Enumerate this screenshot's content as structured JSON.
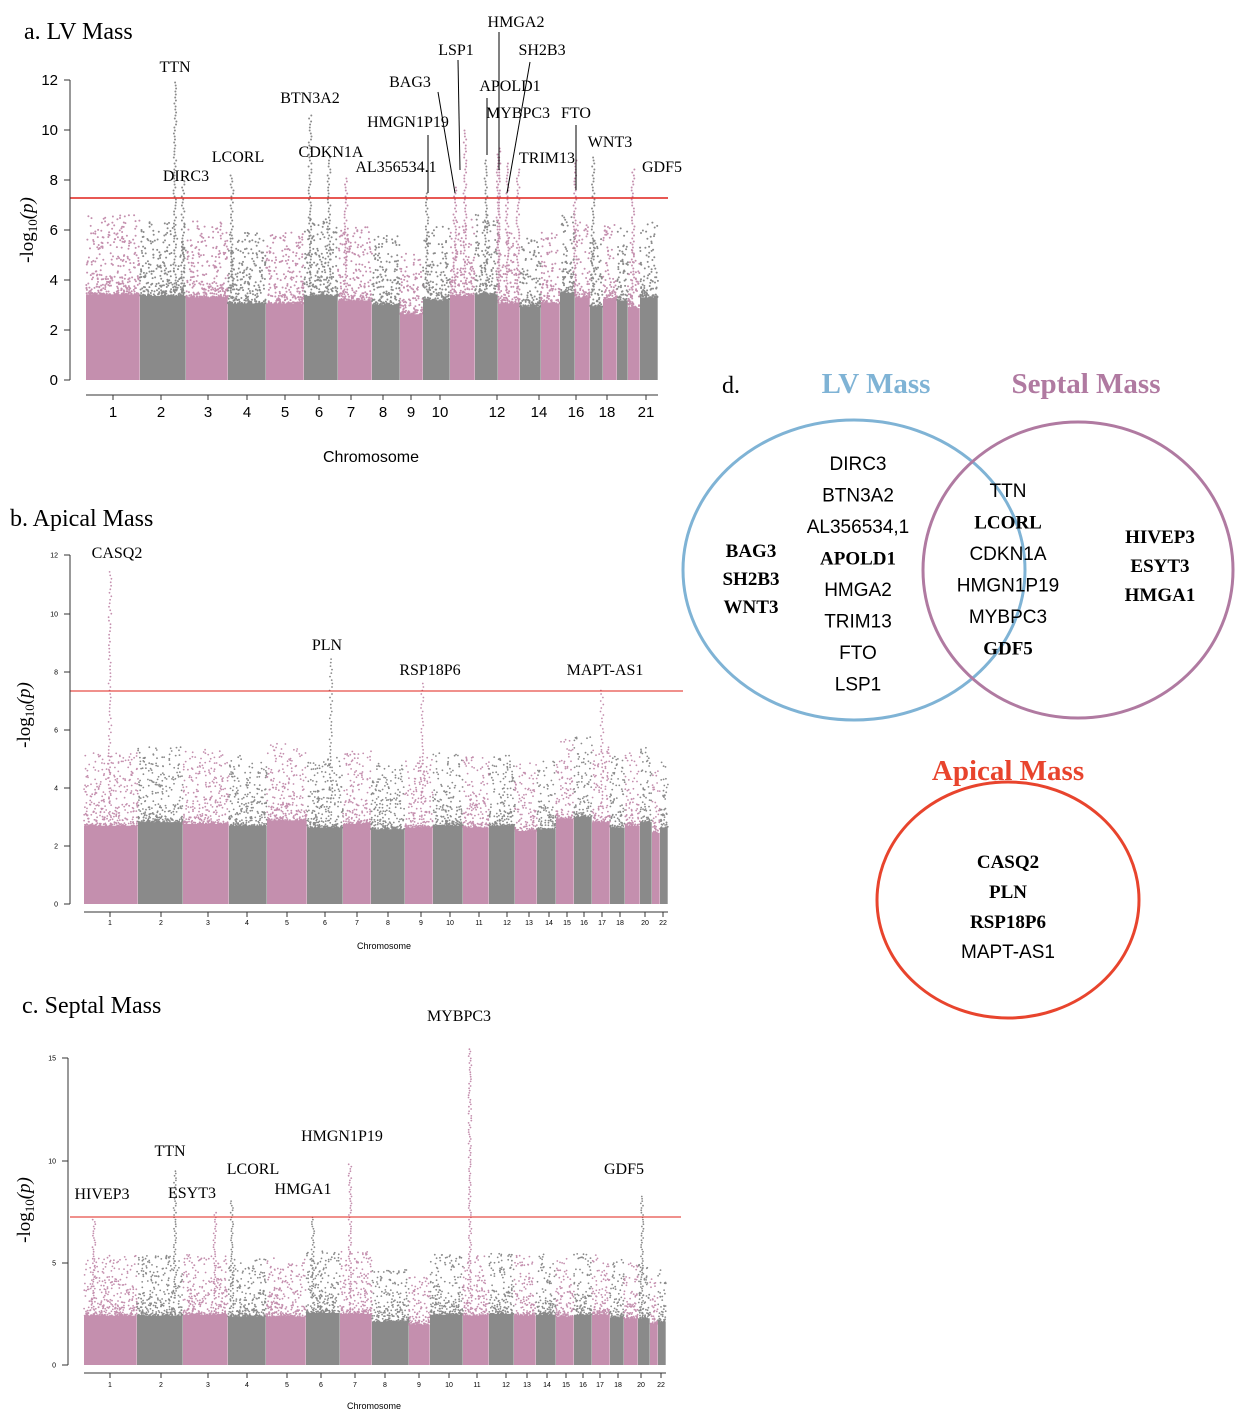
{
  "colors": {
    "pink": "#c48fae",
    "gray": "#8a8a8a",
    "sigline": "#e0201a",
    "lv": "#7fb3d5",
    "septal": "#b07aa1",
    "apical": "#e8442d"
  },
  "panels": [
    {
      "id": "a",
      "title": "a. LV Mass",
      "ylabel_pre": "-log",
      "ylabel_sub": "10",
      "ylabel_post": "(p)",
      "xlabel": "Chromosome",
      "ylim": [
        0,
        12
      ],
      "yticks": [
        "0",
        "2",
        "4",
        "6",
        "8",
        "10",
        "12"
      ],
      "xtick_labels": [
        "1",
        "2",
        "3",
        "4",
        "5",
        "6",
        "7",
        "8",
        "9",
        "10",
        "12",
        "14",
        "16",
        "18",
        "21"
      ],
      "sig": 7.3
    },
    {
      "id": "b",
      "title": "b. Apical Mass",
      "ylabel_pre": "-log",
      "ylabel_sub": "10",
      "ylabel_post": "(p)",
      "xlabel": "Chromosome",
      "ylim": [
        0,
        12
      ],
      "yticks": [
        "0",
        "2",
        "4",
        "6",
        "8",
        "10",
        "12"
      ],
      "xtick_labels": [
        "1",
        "2",
        "3",
        "4",
        "5",
        "6",
        "7",
        "8",
        "9",
        "10",
        "11",
        "12",
        "13",
        "14",
        "15",
        "16",
        "17",
        "18",
        "20",
        "22"
      ],
      "sig": 7.3
    },
    {
      "id": "c",
      "title": "c. Septal Mass",
      "ylabel_pre": "-log",
      "ylabel_sub": "10",
      "ylabel_post": "(p)",
      "xlabel": "Chromosome",
      "ylim": [
        0,
        16
      ],
      "yticks": [
        "0",
        "5",
        "10",
        "15"
      ],
      "xtick_labels": [
        "1",
        "2",
        "3",
        "4",
        "5",
        "6",
        "7",
        "8",
        "9",
        "10",
        "11",
        "12",
        "13",
        "14",
        "15",
        "16",
        "17",
        "18",
        "20",
        "22"
      ],
      "sig": 7.3
    }
  ],
  "chart_data": [
    {
      "type": "scatter",
      "title": "a. LV Mass",
      "xlabel": "Chromosome",
      "ylabel": "-log10(p)",
      "ylim": [
        0,
        12
      ],
      "significance_threshold": 7.3,
      "chromosomes": [
        "1",
        "2",
        "3",
        "4",
        "5",
        "6",
        "7",
        "8",
        "9",
        "10",
        "11",
        "12",
        "13",
        "14",
        "15",
        "16",
        "17",
        "18",
        "19",
        "20",
        "21",
        "22"
      ],
      "peaks": [
        {
          "gene": "TTN",
          "chr": 2,
          "value": 12.0
        },
        {
          "gene": "DIRC3",
          "chr": 2,
          "value": 8.0
        },
        {
          "gene": "LCORL",
          "chr": 4,
          "value": 8.2
        },
        {
          "gene": "BTN3A2",
          "chr": 6,
          "value": 10.6
        },
        {
          "gene": "CDKN1A",
          "chr": 6,
          "value": 8.9
        },
        {
          "gene": "AL356534.1",
          "chr": 7,
          "value": 8.1
        },
        {
          "gene": "HMGN1P19",
          "chr": 9,
          "value": 7.5
        },
        {
          "gene": "BAG3",
          "chr": 10,
          "value": 7.8
        },
        {
          "gene": "LSP1",
          "chr": 11,
          "value": 10.0
        },
        {
          "gene": "APOLD1",
          "chr": 12,
          "value": 8.8
        },
        {
          "gene": "MYBPC3",
          "chr": 12,
          "value": 8.9
        },
        {
          "gene": "HMGA2",
          "chr": 12,
          "value": 9.3
        },
        {
          "gene": "SH2B3",
          "chr": 12,
          "value": 8.7
        },
        {
          "gene": "TRIM13",
          "chr": 13,
          "value": 8.5
        },
        {
          "gene": "FTO",
          "chr": 16,
          "value": 8.8
        },
        {
          "gene": "WNT3",
          "chr": 17,
          "value": 9.0
        },
        {
          "gene": "GDF5",
          "chr": 20,
          "value": 8.5
        }
      ]
    },
    {
      "type": "scatter",
      "title": "b. Apical Mass",
      "xlabel": "Chromosome",
      "ylabel": "-log10(p)",
      "ylim": [
        0,
        12
      ],
      "significance_threshold": 7.3,
      "chromosomes": [
        "1",
        "2",
        "3",
        "4",
        "5",
        "6",
        "7",
        "8",
        "9",
        "10",
        "11",
        "12",
        "13",
        "14",
        "15",
        "16",
        "17",
        "18",
        "19",
        "20",
        "21",
        "22"
      ],
      "peaks": [
        {
          "gene": "CASQ2",
          "chr": 1,
          "value": 11.5
        },
        {
          "gene": "PLN",
          "chr": 6,
          "value": 8.5
        },
        {
          "gene": "RSP18P6",
          "chr": 9,
          "value": 7.6
        },
        {
          "gene": "MAPT-AS1",
          "chr": 17,
          "value": 7.4
        }
      ]
    },
    {
      "type": "scatter",
      "title": "c. Septal Mass",
      "xlabel": "Chromosome",
      "ylabel": "-log10(p)",
      "ylim": [
        0,
        16
      ],
      "significance_threshold": 7.3,
      "chromosomes": [
        "1",
        "2",
        "3",
        "4",
        "5",
        "6",
        "7",
        "8",
        "9",
        "10",
        "11",
        "12",
        "13",
        "14",
        "15",
        "16",
        "17",
        "18",
        "19",
        "20",
        "21",
        "22"
      ],
      "peaks": [
        {
          "gene": "HIVEP3",
          "chr": 1,
          "value": 7.6
        },
        {
          "gene": "TTN",
          "chr": 2,
          "value": 10.2
        },
        {
          "gene": "ESYT3",
          "chr": 3,
          "value": 8.0
        },
        {
          "gene": "LCORL",
          "chr": 4,
          "value": 8.6
        },
        {
          "gene": "HMGA1",
          "chr": 6,
          "value": 7.8
        },
        {
          "gene": "HMGN1P19",
          "chr": 7,
          "value": 10.5
        },
        {
          "gene": "MYBPC3",
          "chr": 11,
          "value": 16.5
        },
        {
          "gene": "GDF5",
          "chr": 20,
          "value": 8.8
        }
      ]
    }
  ],
  "venn": {
    "label": "d.",
    "lv_title": "LV Mass",
    "septal_title": "Septal Mass",
    "apical_title": "Apical Mass",
    "lv_only_bold": [
      "BAG3",
      "SH2B3",
      "WNT3"
    ],
    "lv_only": [
      "DIRC3",
      "BTN3A2",
      "AL356534,1",
      "APOLD1",
      "HMGA2",
      "TRIM13",
      "FTO",
      "LSP1"
    ],
    "lv_only_boldflags": [
      false,
      false,
      false,
      true,
      false,
      false,
      false,
      false
    ],
    "overlap": [
      "TTN",
      "LCORL",
      "CDKN1A",
      "HMGN1P19",
      "MYBPC3",
      "GDF5"
    ],
    "overlap_boldflags": [
      false,
      true,
      false,
      false,
      false,
      true
    ],
    "septal_only": [
      "HIVEP3",
      "ESYT3",
      "HMGA1"
    ],
    "apical": [
      "CASQ2",
      "PLN",
      "RSP18P6",
      "MAPT-AS1"
    ],
    "apical_boldflags": [
      true,
      true,
      true,
      false
    ]
  }
}
